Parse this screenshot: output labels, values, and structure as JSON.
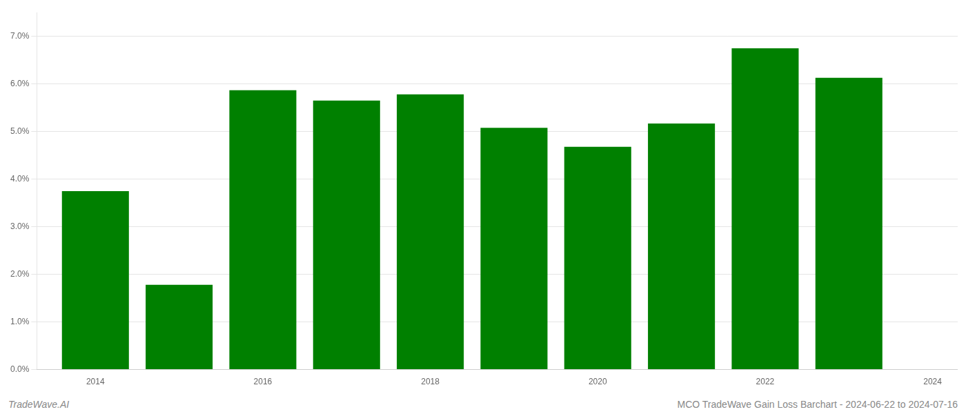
{
  "chart_data": {
    "type": "bar",
    "title": "MCO TradeWave Gain Loss Barchart - 2024-06-22 to 2024-07-16",
    "annotations": [
      "TradeWave.AI"
    ],
    "x": [
      2014,
      2015,
      2016,
      2017,
      2018,
      2019,
      2020,
      2021,
      2022,
      2023
    ],
    "values": [
      0.0375,
      0.0178,
      0.0587,
      0.0565,
      0.0578,
      0.0508,
      0.0468,
      0.0517,
      0.0675,
      0.0613
    ],
    "color": "#008000",
    "xlim": [
      2013.3,
      2024.3
    ],
    "xticks": [
      2014,
      2016,
      2018,
      2020,
      2022,
      2024
    ],
    "ylim": [
      0.0,
      0.075
    ],
    "yticks": [
      {
        "value": 0.0,
        "label": "0.0%"
      },
      {
        "value": 0.01,
        "label": "1.0%"
      },
      {
        "value": 0.02,
        "label": "2.0%"
      },
      {
        "value": 0.03,
        "label": "3.0%"
      },
      {
        "value": 0.04,
        "label": "4.0%"
      },
      {
        "value": 0.05,
        "label": "5.0%"
      },
      {
        "value": 0.06,
        "label": "6.0%"
      },
      {
        "value": 0.07,
        "label": "7.0%"
      }
    ],
    "grid": true
  }
}
